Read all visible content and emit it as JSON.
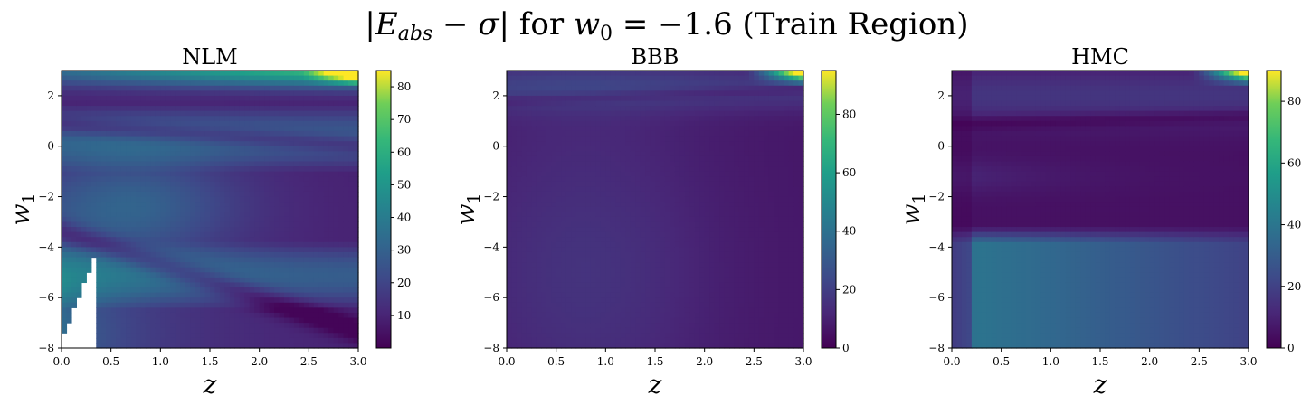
{
  "chart_data": {
    "type": "heatmap",
    "title": "|E_abs − σ| for w0 = −1.6 (Train Region)",
    "colormap": "viridis",
    "panels": [
      {
        "title": "NLM",
        "xlabel": "z",
        "ylabel": "w1",
        "xlim": [
          0.0,
          3.0
        ],
        "ylim": [
          -8,
          3
        ],
        "xticks": [
          "0.0",
          "0.5",
          "1.0",
          "1.5",
          "2.0",
          "2.5",
          "3.0"
        ],
        "yticks": [
          "−8",
          "−6",
          "−4",
          "−2",
          "0",
          "2"
        ],
        "colorbar_range": [
          0,
          85
        ],
        "colorbar_ticks": [
          "10",
          "20",
          "30",
          "40",
          "50",
          "60",
          "70",
          "80"
        ],
        "has_missing_region": true
      },
      {
        "title": "BBB",
        "xlabel": "z",
        "ylabel": "w1",
        "xlim": [
          0.0,
          3.0
        ],
        "ylim": [
          -8,
          3
        ],
        "xticks": [
          "0.0",
          "0.5",
          "1.0",
          "1.5",
          "2.0",
          "2.5",
          "3.0"
        ],
        "yticks": [
          "−8",
          "−6",
          "−4",
          "−2",
          "0",
          "2"
        ],
        "colorbar_range": [
          0,
          95
        ],
        "colorbar_ticks": [
          "0",
          "20",
          "40",
          "60",
          "80"
        ]
      },
      {
        "title": "HMC",
        "xlabel": "z",
        "ylabel": "w1",
        "xlim": [
          0.0,
          3.0
        ],
        "ylim": [
          -8,
          3
        ],
        "xticks": [
          "0.0",
          "0.5",
          "1.0",
          "1.5",
          "2.0",
          "2.5",
          "3.0"
        ],
        "yticks": [
          "−8",
          "−6",
          "−4",
          "−2",
          "0",
          "2"
        ],
        "colorbar_range": [
          0,
          90
        ],
        "colorbar_ticks": [
          "0",
          "20",
          "40",
          "60",
          "80"
        ]
      }
    ]
  }
}
